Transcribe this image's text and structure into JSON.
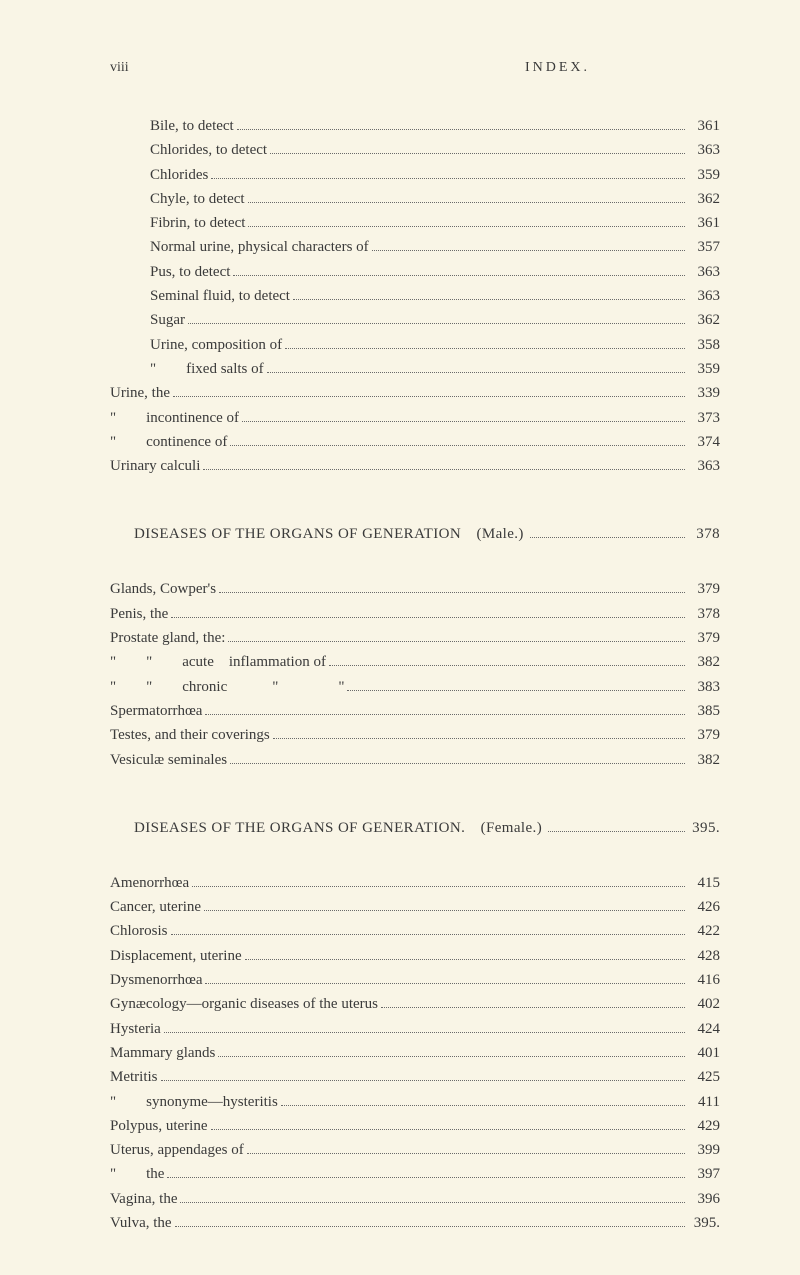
{
  "header": {
    "left": "viii",
    "right": "INDEX."
  },
  "background_color": "#f9f5e6",
  "text_color": "#3a3a3a",
  "block1": {
    "entries": [
      {
        "label": "Bile, to detect",
        "page": "361",
        "indent": 1
      },
      {
        "label": "Chlorides, to detect",
        "page": "363",
        "indent": 1
      },
      {
        "label": "Chlorides",
        "page": "359",
        "indent": 1
      },
      {
        "label": "Chyle, to detect",
        "page": "362",
        "indent": 1
      },
      {
        "label": "Fibrin, to detect",
        "page": "361",
        "indent": 1
      },
      {
        "label": "Normal urine, physical characters of",
        "page": "357",
        "indent": 1
      },
      {
        "label": "Pus, to detect",
        "page": "363",
        "indent": 1
      },
      {
        "label": "Seminal fluid, to detect",
        "page": "363",
        "indent": 1
      },
      {
        "label": "Sugar",
        "page": "362",
        "indent": 1
      },
      {
        "label": "Urine, composition of",
        "page": "358",
        "indent": 1
      },
      {
        "label": "\"  fixed salts of",
        "page": "359",
        "indent": 1
      },
      {
        "label": "Urine, the",
        "page": "339",
        "indent": 0
      },
      {
        "label": "\"  incontinence of",
        "page": "373",
        "indent": 0
      },
      {
        "label": "\"  continence of",
        "page": "374",
        "indent": 0
      },
      {
        "label": "Urinary calculi",
        "page": "363",
        "indent": 0
      }
    ]
  },
  "section2": {
    "title": "DISEASES OF THE ORGANS OF GENERATION (Male.)",
    "page": "378",
    "entries": [
      {
        "label": "Glands, Cowper's",
        "page": "379",
        "indent": 0
      },
      {
        "label": "Penis, the",
        "page": "378",
        "indent": 0
      },
      {
        "label": "Prostate gland, the:",
        "page": "379",
        "indent": 0
      },
      {
        "label": "\"  \"  acute inflammation of",
        "page": "382",
        "indent": 0
      },
      {
        "label": "\"  \"  chronic   \"    \"",
        "page": "383",
        "indent": 0
      },
      {
        "label": "Spermatorrhœa",
        "page": "385",
        "indent": 0
      },
      {
        "label": "Testes, and their coverings",
        "page": "379",
        "indent": 0
      },
      {
        "label": "Vesiculæ seminales",
        "page": "382",
        "indent": 0
      }
    ]
  },
  "section3": {
    "title": "DISEASES OF THE ORGANS OF GENERATION. (Female.)",
    "page": "395.",
    "entries": [
      {
        "label": "Amenorrhœa",
        "page": "415",
        "indent": 0
      },
      {
        "label": "Cancer, uterine",
        "page": "426",
        "indent": 0
      },
      {
        "label": "Chlorosis",
        "page": "422",
        "indent": 0
      },
      {
        "label": "Displacement, uterine",
        "page": "428",
        "indent": 0
      },
      {
        "label": "Dysmenorrhœa",
        "page": "416",
        "indent": 0
      },
      {
        "label": "Gynæcology—organic diseases of the uterus",
        "page": "402",
        "indent": 0
      },
      {
        "label": "Hysteria",
        "page": "424",
        "indent": 0
      },
      {
        "label": "Mammary glands",
        "page": "401",
        "indent": 0
      },
      {
        "label": "Metritis",
        "page": "425",
        "indent": 0
      },
      {
        "label": "\"  synonyme—hysteritis",
        "page": "411",
        "indent": 0
      },
      {
        "label": "Polypus, uterine",
        "page": "429",
        "indent": 0
      },
      {
        "label": "Uterus, appendages of",
        "page": "399",
        "indent": 0
      },
      {
        "label": "\"  the",
        "page": "397",
        "indent": 0
      },
      {
        "label": "Vagina, the",
        "page": "396",
        "indent": 0
      },
      {
        "label": "Vulva, the",
        "page": "395.",
        "indent": 0
      }
    ]
  }
}
